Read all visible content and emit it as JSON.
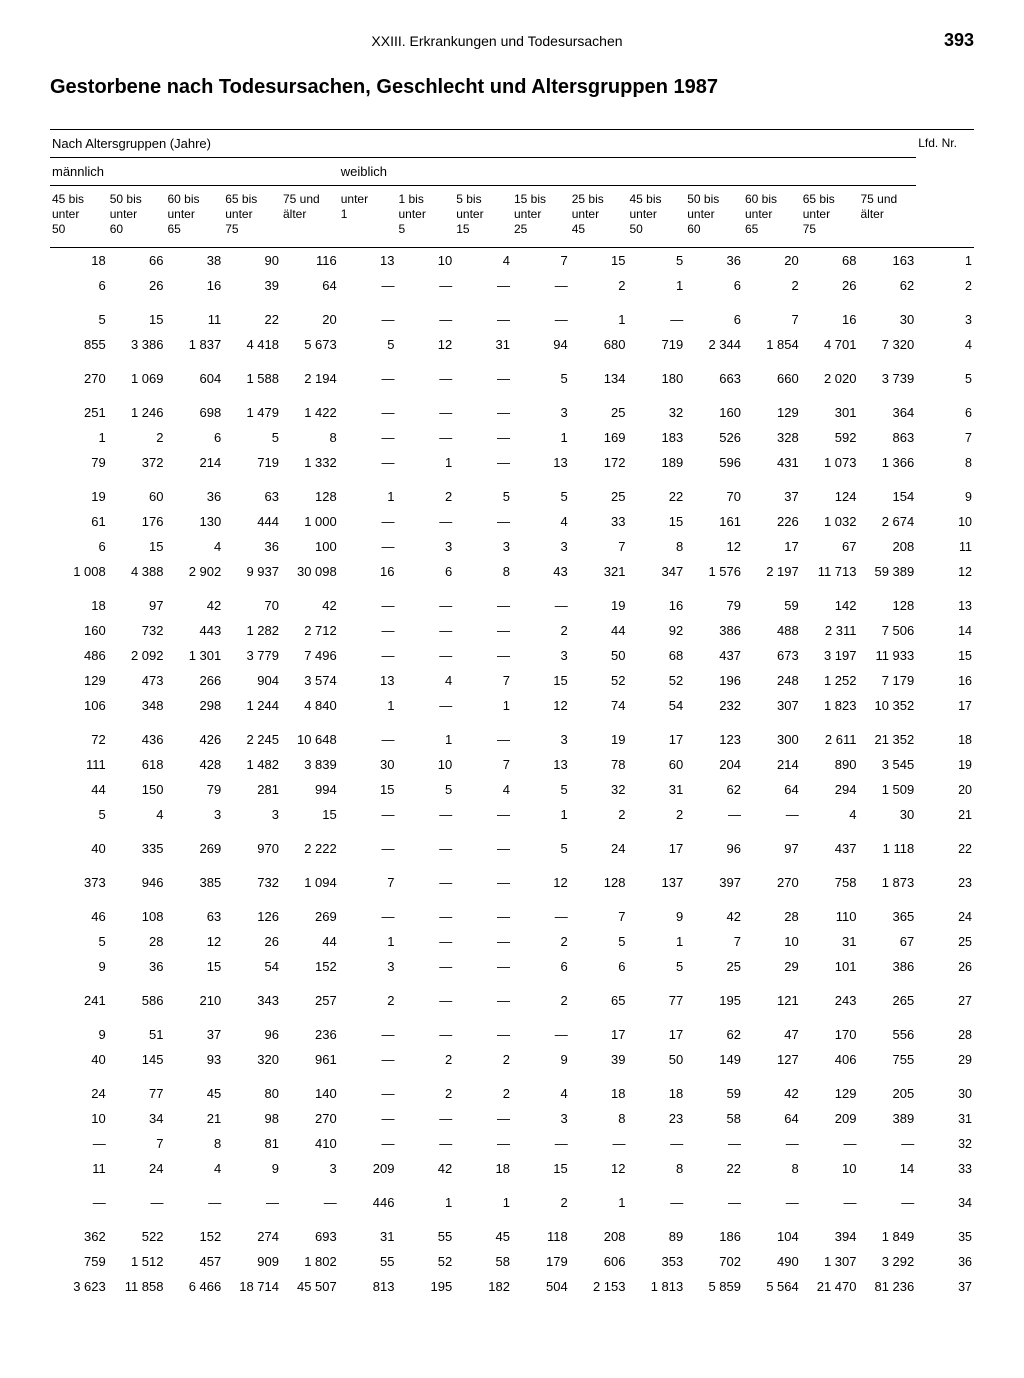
{
  "header": {
    "chapter": "XXIII. Erkrankungen und Todesursachen",
    "page": "393"
  },
  "title": "Gestorbene nach Todesursachen, Geschlecht und Altersgruppen 1987",
  "sections": {
    "age_groups": "Nach Altersgruppen (Jahre)",
    "male": "männlich",
    "female": "weiblich",
    "lfd": "Lfd.\nNr."
  },
  "columns": {
    "m": [
      "45 bis\nunter\n50",
      "50 bis\nunter\n60",
      "60 bis\nunter\n65",
      "65 bis\nunter\n75",
      "75 und\nälter"
    ],
    "w": [
      "unter\n1",
      "1 bis\nunter\n5",
      "5 bis\nunter\n15",
      "15 bis\nunter\n25",
      "25 bis\nunter\n45",
      "45 bis\nunter\n50",
      "50 bis\nunter\n60",
      "60 bis\nunter\n65",
      "65 bis\nunter\n75",
      "75 und\nälter"
    ]
  },
  "rows": [
    [
      "18",
      "66",
      "38",
      "90",
      "116",
      "13",
      "10",
      "4",
      "7",
      "15",
      "5",
      "36",
      "20",
      "68",
      "163",
      "1"
    ],
    [
      "6",
      "26",
      "16",
      "39",
      "64",
      "—",
      "—",
      "—",
      "—",
      "2",
      "1",
      "6",
      "2",
      "26",
      "62",
      "2"
    ],
    [
      "5",
      "15",
      "11",
      "22",
      "20",
      "—",
      "—",
      "—",
      "—",
      "1",
      "—",
      "6",
      "7",
      "16",
      "30",
      "3"
    ],
    [
      "855",
      "3 386",
      "1 837",
      "4 418",
      "5 673",
      "5",
      "12",
      "31",
      "94",
      "680",
      "719",
      "2 344",
      "1 854",
      "4 701",
      "7 320",
      "4"
    ],
    [
      "270",
      "1 069",
      "604",
      "1 588",
      "2 194",
      "—",
      "—",
      "—",
      "5",
      "134",
      "180",
      "663",
      "660",
      "2 020",
      "3 739",
      "5"
    ],
    [
      "251",
      "1 246",
      "698",
      "1 479",
      "1 422",
      "—",
      "—",
      "—",
      "3",
      "25",
      "32",
      "160",
      "129",
      "301",
      "364",
      "6"
    ],
    [
      "1",
      "2",
      "6",
      "5",
      "8",
      "—",
      "—",
      "—",
      "1",
      "169",
      "183",
      "526",
      "328",
      "592",
      "863",
      "7"
    ],
    [
      "79",
      "372",
      "214",
      "719",
      "1 332",
      "—",
      "1",
      "—",
      "13",
      "172",
      "189",
      "596",
      "431",
      "1 073",
      "1 366",
      "8"
    ],
    [
      "19",
      "60",
      "36",
      "63",
      "128",
      "1",
      "2",
      "5",
      "5",
      "25",
      "22",
      "70",
      "37",
      "124",
      "154",
      "9"
    ],
    [
      "61",
      "176",
      "130",
      "444",
      "1 000",
      "—",
      "—",
      "—",
      "4",
      "33",
      "15",
      "161",
      "226",
      "1 032",
      "2 674",
      "10"
    ],
    [
      "6",
      "15",
      "4",
      "36",
      "100",
      "—",
      "3",
      "3",
      "3",
      "7",
      "8",
      "12",
      "17",
      "67",
      "208",
      "11"
    ],
    [
      "1 008",
      "4 388",
      "2 902",
      "9 937",
      "30 098",
      "16",
      "6",
      "8",
      "43",
      "321",
      "347",
      "1 576",
      "2 197",
      "11 713",
      "59 389",
      "12"
    ],
    [
      "18",
      "97",
      "42",
      "70",
      "42",
      "—",
      "—",
      "—",
      "—",
      "19",
      "16",
      "79",
      "59",
      "142",
      "128",
      "13"
    ],
    [
      "160",
      "732",
      "443",
      "1 282",
      "2 712",
      "—",
      "—",
      "—",
      "2",
      "44",
      "92",
      "386",
      "488",
      "2 311",
      "7 506",
      "14"
    ],
    [
      "486",
      "2 092",
      "1 301",
      "3 779",
      "7 496",
      "—",
      "—",
      "—",
      "3",
      "50",
      "68",
      "437",
      "673",
      "3 197",
      "11 933",
      "15"
    ],
    [
      "129",
      "473",
      "266",
      "904",
      "3 574",
      "13",
      "4",
      "7",
      "15",
      "52",
      "52",
      "196",
      "248",
      "1 252",
      "7 179",
      "16"
    ],
    [
      "106",
      "348",
      "298",
      "1 244",
      "4 840",
      "1",
      "—",
      "1",
      "12",
      "74",
      "54",
      "232",
      "307",
      "1 823",
      "10 352",
      "17"
    ],
    [
      "72",
      "436",
      "426",
      "2 245",
      "10 648",
      "—",
      "1",
      "—",
      "3",
      "19",
      "17",
      "123",
      "300",
      "2 611",
      "21 352",
      "18"
    ],
    [
      "111",
      "618",
      "428",
      "1 482",
      "3 839",
      "30",
      "10",
      "7",
      "13",
      "78",
      "60",
      "204",
      "214",
      "890",
      "3 545",
      "19"
    ],
    [
      "44",
      "150",
      "79",
      "281",
      "994",
      "15",
      "5",
      "4",
      "5",
      "32",
      "31",
      "62",
      "64",
      "294",
      "1 509",
      "20"
    ],
    [
      "5",
      "4",
      "3",
      "3",
      "15",
      "—",
      "—",
      "—",
      "1",
      "2",
      "2",
      "—",
      "—",
      "4",
      "30",
      "21"
    ],
    [
      "40",
      "335",
      "269",
      "970",
      "2 222",
      "—",
      "—",
      "—",
      "5",
      "24",
      "17",
      "96",
      "97",
      "437",
      "1 118",
      "22"
    ],
    [
      "373",
      "946",
      "385",
      "732",
      "1 094",
      "7",
      "—",
      "—",
      "12",
      "128",
      "137",
      "397",
      "270",
      "758",
      "1 873",
      "23"
    ],
    [
      "46",
      "108",
      "63",
      "126",
      "269",
      "—",
      "—",
      "—",
      "—",
      "7",
      "9",
      "42",
      "28",
      "110",
      "365",
      "24"
    ],
    [
      "5",
      "28",
      "12",
      "26",
      "44",
      "1",
      "—",
      "—",
      "2",
      "5",
      "1",
      "7",
      "10",
      "31",
      "67",
      "25"
    ],
    [
      "9",
      "36",
      "15",
      "54",
      "152",
      "3",
      "—",
      "—",
      "6",
      "6",
      "5",
      "25",
      "29",
      "101",
      "386",
      "26"
    ],
    [
      "241",
      "586",
      "210",
      "343",
      "257",
      "2",
      "—",
      "—",
      "2",
      "65",
      "77",
      "195",
      "121",
      "243",
      "265",
      "27"
    ],
    [
      "9",
      "51",
      "37",
      "96",
      "236",
      "—",
      "—",
      "—",
      "—",
      "17",
      "17",
      "62",
      "47",
      "170",
      "556",
      "28"
    ],
    [
      "40",
      "145",
      "93",
      "320",
      "961",
      "—",
      "2",
      "2",
      "9",
      "39",
      "50",
      "149",
      "127",
      "406",
      "755",
      "29"
    ],
    [
      "24",
      "77",
      "45",
      "80",
      "140",
      "—",
      "2",
      "2",
      "4",
      "18",
      "18",
      "59",
      "42",
      "129",
      "205",
      "30"
    ],
    [
      "10",
      "34",
      "21",
      "98",
      "270",
      "—",
      "—",
      "—",
      "3",
      "8",
      "23",
      "58",
      "64",
      "209",
      "389",
      "31"
    ],
    [
      "—",
      "7",
      "8",
      "81",
      "410",
      "—",
      "—",
      "—",
      "—",
      "—",
      "—",
      "—",
      "—",
      "—",
      "—",
      "32"
    ],
    [
      "11",
      "24",
      "4",
      "9",
      "3",
      "209",
      "42",
      "18",
      "15",
      "12",
      "8",
      "22",
      "8",
      "10",
      "14",
      "33"
    ],
    [
      "—",
      "—",
      "—",
      "—",
      "—",
      "446",
      "1",
      "1",
      "2",
      "1",
      "—",
      "—",
      "—",
      "—",
      "—",
      "34"
    ],
    [
      "362",
      "522",
      "152",
      "274",
      "693",
      "31",
      "55",
      "45",
      "118",
      "208",
      "89",
      "186",
      "104",
      "394",
      "1 849",
      "35"
    ],
    [
      "759",
      "1 512",
      "457",
      "909",
      "1 802",
      "55",
      "52",
      "58",
      "179",
      "606",
      "353",
      "702",
      "490",
      "1 307",
      "3 292",
      "36"
    ],
    [
      "3 623",
      "11 858",
      "6 466",
      "18 714",
      "45 507",
      "813",
      "195",
      "182",
      "504",
      "2 153",
      "1 813",
      "5 859",
      "5 564",
      "21 470",
      "81 236",
      "37"
    ]
  ],
  "gaps": [
    2,
    4,
    5,
    8,
    12,
    17,
    21,
    22,
    23,
    26,
    27,
    29,
    33,
    34
  ]
}
